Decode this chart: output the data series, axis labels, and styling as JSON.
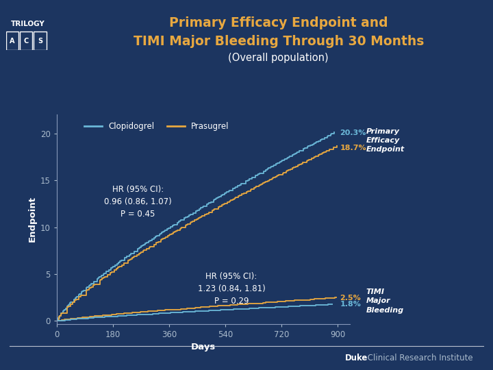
{
  "title_line1": "Primary Efficacy Endpoint and",
  "title_line2": "TIMI Major Bleeding Through 30 Months",
  "subtitle": "(Overall population)",
  "title_color": "#E8A840",
  "subtitle_color": "#FFFFFF",
  "bg_color": "#1C3560",
  "plot_bg_color": "#1C3560",
  "axes_color": "#8899BB",
  "tick_color": "#AABBCC",
  "xlabel": "Days",
  "ylabel": "Endpoint",
  "xticks": [
    0,
    180,
    360,
    540,
    720,
    900
  ],
  "yticks": [
    0,
    5,
    10,
    15,
    20
  ],
  "xlim": [
    0,
    940
  ],
  "ylim": [
    -0.3,
    22
  ],
  "clopidogrel_color": "#6BB8D8",
  "prasugrel_color": "#E8A840",
  "legend_clopidogrel": "Clopidogrel",
  "legend_prasugrel": "Prasugrel",
  "annotation_efficacy": "HR (95% CI):\n0.96 (0.86, 1.07)\nP = 0.45",
  "annotation_bleeding": "HR (95% CI):\n1.23 (0.84, 1.81)\nP = 0.29",
  "label_clopidogrel_efficacy": "20.3%",
  "label_prasugrel_efficacy": "18.7%",
  "label_prasugrel_bleeding": "2.5%",
  "label_clopidogrel_bleeding": "1.8%",
  "label_primary_efficacy": "Primary\nEfficacy\nEndpoint",
  "label_timi_bleeding": "TIMI\nMajor\nBleeding",
  "duke_text": "Duke",
  "duke_text2": " Clinical Research Institute"
}
